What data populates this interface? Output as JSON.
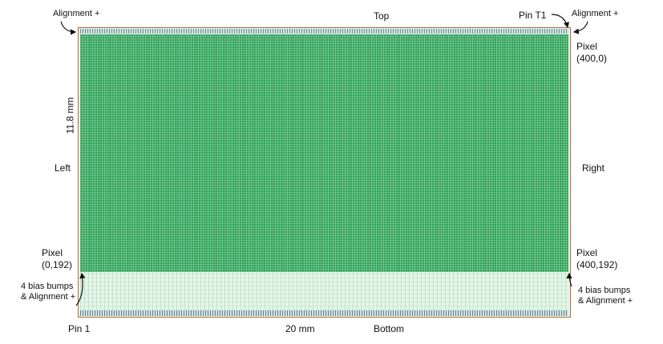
{
  "labels": {
    "top": "Top",
    "bottom": "Bottom",
    "left": "Left",
    "right": "Right",
    "height_dim": "11.8 mm",
    "width_dim": "20 mm",
    "pin1": "Pin 1",
    "pin_t1": "Pin T1",
    "align_top_left": "Alignment +",
    "align_top_right": "Alignment +",
    "pixel_top_right_line1": "Pixel",
    "pixel_top_right_line2": "(400,0)",
    "pixel_bottom_left_line1": "Pixel",
    "pixel_bottom_left_line2": "(0,192)",
    "pixel_bottom_right_line1": "Pixel",
    "pixel_bottom_right_line2": "(400,192)",
    "bias_left_line1": "4 bias bumps",
    "bias_left_line2": "& Alignment +",
    "bias_right_line1": "4 bias bumps",
    "bias_right_line2": "& Alignment +"
  },
  "colors": {
    "pixel_matrix": "#2fa55a",
    "periphery": "#e4f5e6",
    "chip_border": "#b26a3c"
  }
}
